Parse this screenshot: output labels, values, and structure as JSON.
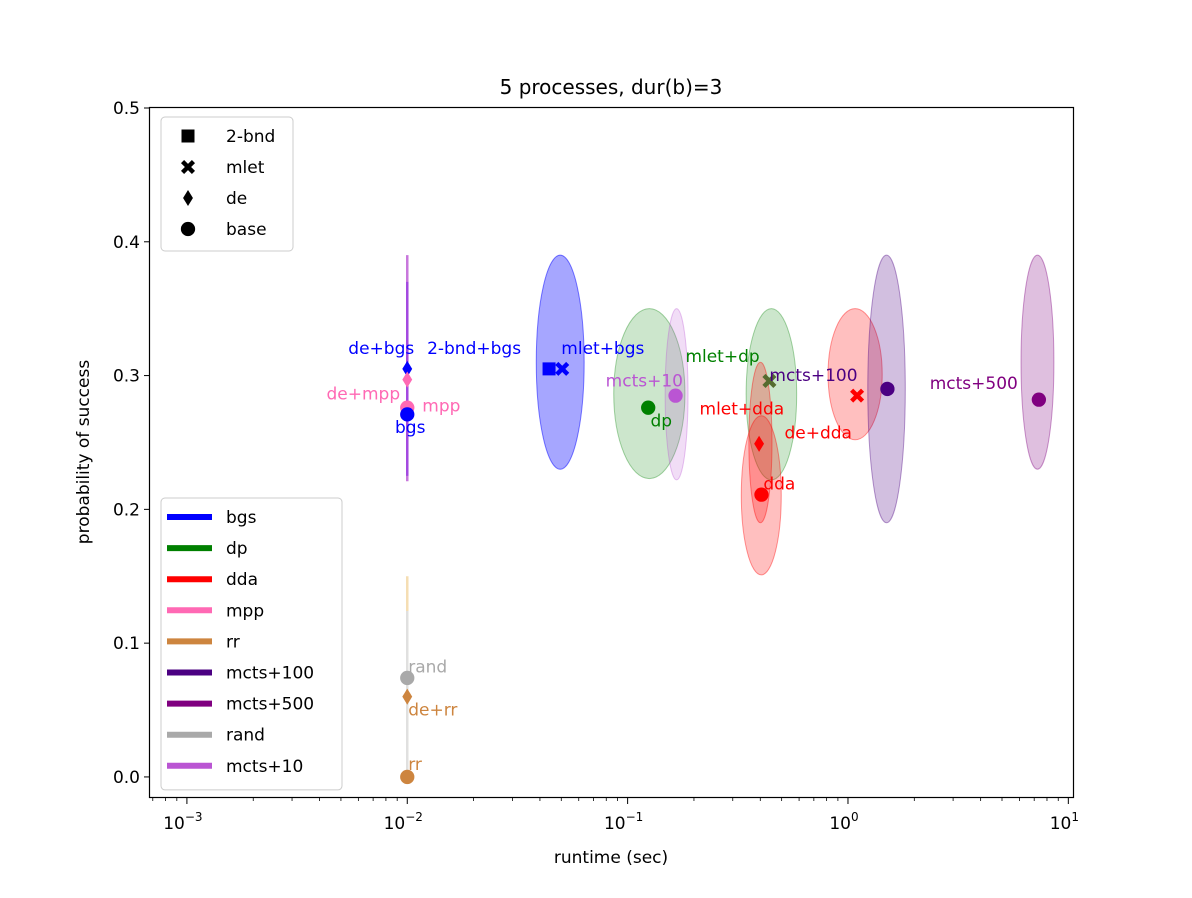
{
  "chart_data": {
    "type": "scatter",
    "title": "5 processes, dur(b)=3",
    "xlabel": "runtime (sec)",
    "ylabel": "probability of success",
    "xscale": "log",
    "xlim": [
      0.00068,
      10.5
    ],
    "ylim": [
      -0.015,
      0.5
    ],
    "x_ticks": [
      {
        "value": 0.001,
        "base": "10",
        "exp": "−3"
      },
      {
        "value": 0.01,
        "base": "10",
        "exp": "−2"
      },
      {
        "value": 0.1,
        "base": "10",
        "exp": "−1"
      },
      {
        "value": 1,
        "base": "10",
        "exp": "0"
      },
      {
        "value": 10,
        "base": "10",
        "exp": "1"
      }
    ],
    "y_ticks": [
      {
        "value": 0.0,
        "label": "0.0"
      },
      {
        "value": 0.1,
        "label": "0.1"
      },
      {
        "value": 0.2,
        "label": "0.2"
      },
      {
        "value": 0.3,
        "label": "0.3"
      },
      {
        "value": 0.4,
        "label": "0.4"
      },
      {
        "value": 0.5,
        "label": "0.5"
      }
    ],
    "marker_legend": {
      "placement": "upper-left",
      "items": [
        {
          "marker": "square",
          "label": "2-bnd"
        },
        {
          "marker": "x",
          "label": "mlet"
        },
        {
          "marker": "diamond",
          "label": "de"
        },
        {
          "marker": "circle",
          "label": "base"
        }
      ]
    },
    "color_legend": {
      "placement": "lower-left",
      "items": [
        {
          "label": "bgs",
          "color": "#0000ff"
        },
        {
          "label": "dp",
          "color": "#008000"
        },
        {
          "label": "dda",
          "color": "#ff0000"
        },
        {
          "label": "mpp",
          "color": "#ff69b4"
        },
        {
          "label": "rr",
          "color": "#cd853f"
        },
        {
          "label": "mcts+100",
          "color": "#4b0082"
        },
        {
          "label": "mcts+500",
          "color": "#800080"
        },
        {
          "label": "rand",
          "color": "#a9a9a9"
        },
        {
          "label": "mcts+10",
          "color": "#ba55d3"
        }
      ]
    },
    "ellipses": [
      {
        "color": "#0000ff",
        "alpha": 0.35,
        "x_low": 0.0385,
        "x_high": 0.0635,
        "y_low": 0.23,
        "y_high": 0.39
      },
      {
        "color": "#008000",
        "alpha": 0.2,
        "x_low": 0.0865,
        "x_high": 0.182,
        "y_low": 0.223,
        "y_high": 0.35
      },
      {
        "color": "#ba55d3",
        "alpha": 0.2,
        "x_low": 0.148,
        "x_high": 0.188,
        "y_low": 0.222,
        "y_high": 0.35
      },
      {
        "color": "#008000",
        "alpha": 0.2,
        "x_low": 0.345,
        "x_high": 0.585,
        "y_low": 0.222,
        "y_high": 0.35
      },
      {
        "color": "#ff0000",
        "alpha": 0.25,
        "x_low": 0.355,
        "x_high": 0.452,
        "y_low": 0.19,
        "y_high": 0.31
      },
      {
        "color": "#ff0000",
        "alpha": 0.25,
        "x_low": 0.328,
        "x_high": 0.498,
        "y_low": 0.151,
        "y_high": 0.27
      },
      {
        "color": "#ff0000",
        "alpha": 0.25,
        "x_low": 0.812,
        "x_high": 1.43,
        "y_low": 0.252,
        "y_high": 0.35
      },
      {
        "color": "#4b0082",
        "alpha": 0.25,
        "x_low": 1.23,
        "x_high": 1.82,
        "y_low": 0.19,
        "y_high": 0.39
      },
      {
        "color": "#800080",
        "alpha": 0.25,
        "x_low": 6.1,
        "x_high": 8.6,
        "y_low": 0.23,
        "y_high": 0.39
      }
    ],
    "vlines": [
      {
        "x": 0.01,
        "y_low": 0.221,
        "y_high": 0.39,
        "color": "#ba55d3",
        "alpha": 0.8
      },
      {
        "x": 0.01,
        "y_low": 0.225,
        "y_high": 0.37,
        "color": "#8a2be2",
        "alpha": 0.6
      },
      {
        "x": 0.01,
        "y_low": 0.0,
        "y_high": 0.15,
        "color": "#f5deb3",
        "alpha": 1
      },
      {
        "x": 0.01,
        "y_low": 0.0,
        "y_high": 0.124,
        "color": "#e0e0e0",
        "alpha": 1
      }
    ],
    "points": [
      {
        "x": 0.01,
        "y": 0.305,
        "marker": "diamond",
        "color": "#0000ff"
      },
      {
        "x": 0.01,
        "y": 0.297,
        "marker": "diamond",
        "color": "#ff69b4"
      },
      {
        "x": 0.01,
        "y": 0.276,
        "marker": "circle",
        "color": "#ff69b4"
      },
      {
        "x": 0.01,
        "y": 0.271,
        "marker": "circle",
        "color": "#0000ff"
      },
      {
        "x": 0.044,
        "y": 0.305,
        "marker": "square",
        "color": "#0000ff"
      },
      {
        "x": 0.0505,
        "y": 0.305,
        "marker": "x",
        "color": "#0000ff"
      },
      {
        "x": 0.124,
        "y": 0.276,
        "marker": "circle",
        "color": "#008000"
      },
      {
        "x": 0.165,
        "y": 0.285,
        "marker": "circle",
        "color": "#ba55d3"
      },
      {
        "x": 0.44,
        "y": 0.296,
        "marker": "x",
        "color": "#556b2f"
      },
      {
        "x": 0.395,
        "y": 0.249,
        "marker": "diamond",
        "color": "#ff0000"
      },
      {
        "x": 0.405,
        "y": 0.211,
        "marker": "circle",
        "color": "#ff0000"
      },
      {
        "x": 1.1,
        "y": 0.285,
        "marker": "x",
        "color": "#ff0000"
      },
      {
        "x": 1.51,
        "y": 0.29,
        "marker": "circle",
        "color": "#4b0082"
      },
      {
        "x": 7.35,
        "y": 0.282,
        "marker": "circle",
        "color": "#800080"
      },
      {
        "x": 0.01,
        "y": 0.074,
        "marker": "circle",
        "color": "#a9a9a9"
      },
      {
        "x": 0.01,
        "y": 0.06,
        "marker": "diamond",
        "color": "#cd853f"
      },
      {
        "x": 0.01,
        "y": 0.0,
        "marker": "circle",
        "color": "#cd853f"
      }
    ],
    "annotations": [
      {
        "text": "de+bgs",
        "x": 0.0054,
        "y": 0.316,
        "color": "#0000ff"
      },
      {
        "text": "2-bnd+bgs",
        "x": 0.0123,
        "y": 0.316,
        "color": "#0000ff"
      },
      {
        "text": "mlet+bgs",
        "x": 0.05,
        "y": 0.316,
        "color": "#0000ff"
      },
      {
        "text": "mlet+dp",
        "x": 0.183,
        "y": 0.31,
        "color": "#008000"
      },
      {
        "text": "mcts+10",
        "x": 0.0795,
        "y": 0.292,
        "color": "#ba55d3"
      },
      {
        "text": "mcts+100",
        "x": 0.44,
        "y": 0.296,
        "color": "#4b0082"
      },
      {
        "text": "mcts+500",
        "x": 2.35,
        "y": 0.29,
        "color": "#800080"
      },
      {
        "text": "de+mpp",
        "x": 0.0043,
        "y": 0.282,
        "color": "#ff69b4"
      },
      {
        "text": "mpp",
        "x": 0.0117,
        "y": 0.273,
        "color": "#ff69b4"
      },
      {
        "text": "mlet+dda",
        "x": 0.212,
        "y": 0.271,
        "color": "#ff0000"
      },
      {
        "text": "bgs",
        "x": 0.0088,
        "y": 0.257,
        "color": "#0000ff"
      },
      {
        "text": "dp",
        "x": 0.127,
        "y": 0.262,
        "color": "#008000"
      },
      {
        "text": "de+dda",
        "x": 0.515,
        "y": 0.253,
        "color": "#ff0000"
      },
      {
        "text": "dda",
        "x": 0.413,
        "y": 0.215,
        "color": "#ff0000"
      },
      {
        "text": "rand",
        "x": 0.0101,
        "y": 0.078,
        "color": "#a9a9a9"
      },
      {
        "text": "de+rr",
        "x": 0.0101,
        "y": 0.046,
        "color": "#cd853f"
      },
      {
        "text": "rr",
        "x": 0.0101,
        "y": 0.005,
        "color": "#cd853f"
      }
    ]
  }
}
